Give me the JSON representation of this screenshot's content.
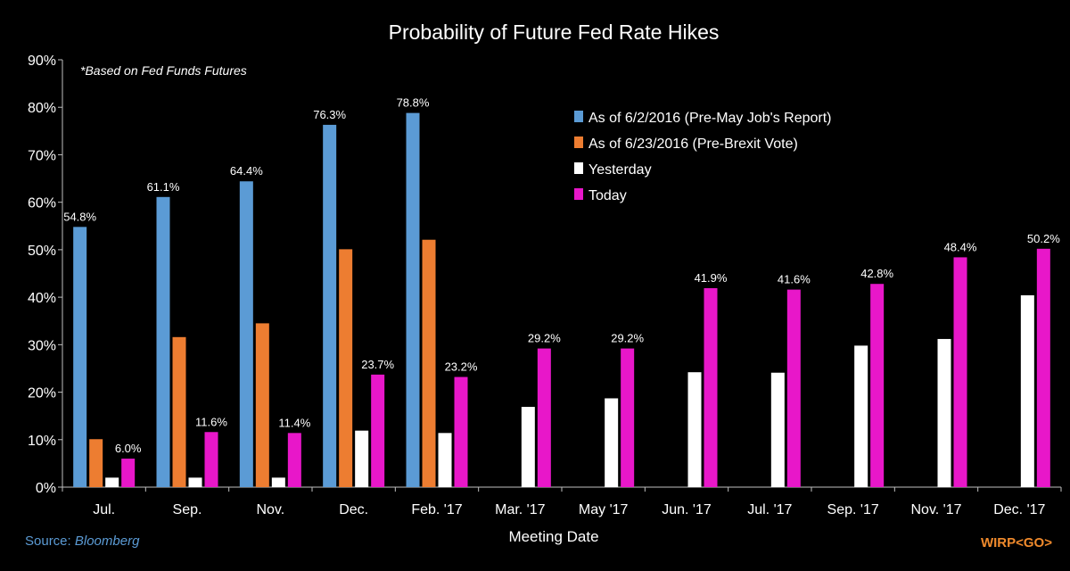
{
  "chart_data": {
    "type": "bar",
    "title": "Probability of Future Fed Rate Hikes",
    "subtitle": "*Based on Fed Funds Futures",
    "xlabel": "Meeting Date",
    "ylabel": "",
    "ylim": [
      0,
      90
    ],
    "ytick_step": 10,
    "ytick_suffix": "%",
    "grid": false,
    "legend_position": "top-right",
    "categories": [
      "Jul.",
      "Sep.",
      "Nov.",
      "Dec.",
      "Feb. '17",
      "Mar. '17",
      "May '17",
      "Jun. '17",
      "Jul. '17",
      "Sep. '17",
      "Nov. '17",
      "Dec. '17"
    ],
    "series": [
      {
        "name": "As of 6/2/2016 (Pre-May Job's Report)",
        "color": "#5b9bd5",
        "values": [
          54.8,
          61.1,
          64.4,
          76.3,
          78.8,
          null,
          null,
          null,
          null,
          null,
          null,
          null
        ],
        "labels": [
          "54.8%",
          "61.1%",
          "64.4%",
          "76.3%",
          "78.8%",
          null,
          null,
          null,
          null,
          null,
          null,
          null
        ]
      },
      {
        "name": "As of 6/23/2016 (Pre-Brexit Vote)",
        "color": "#ed7d31",
        "values": [
          10.1,
          31.6,
          34.5,
          50.1,
          52.1,
          null,
          null,
          null,
          null,
          null,
          null,
          null
        ],
        "labels": [
          null,
          null,
          null,
          null,
          null,
          null,
          null,
          null,
          null,
          null,
          null,
          null
        ]
      },
      {
        "name": "Yesterday",
        "color": "#ffffff",
        "values": [
          2.0,
          2.0,
          2.0,
          11.9,
          11.4,
          16.9,
          18.7,
          24.2,
          24.1,
          29.8,
          31.2,
          40.4
        ],
        "labels": [
          null,
          null,
          null,
          null,
          null,
          null,
          null,
          null,
          null,
          null,
          null,
          null
        ]
      },
      {
        "name": "Today",
        "color": "#e817c9",
        "values": [
          6.0,
          11.6,
          11.4,
          23.7,
          23.2,
          29.2,
          29.2,
          41.9,
          41.6,
          42.8,
          48.4,
          50.2
        ],
        "labels": [
          "6.0%",
          "11.6%",
          "11.4%",
          "23.7%",
          "23.2%",
          "29.2%",
          "29.2%",
          "41.9%",
          "41.6%",
          "42.8%",
          "48.4%",
          "50.2%"
        ]
      }
    ]
  },
  "footer": {
    "source_prefix": "Source: ",
    "source_name": "Bloomberg",
    "command": "WIRP<GO>"
  }
}
